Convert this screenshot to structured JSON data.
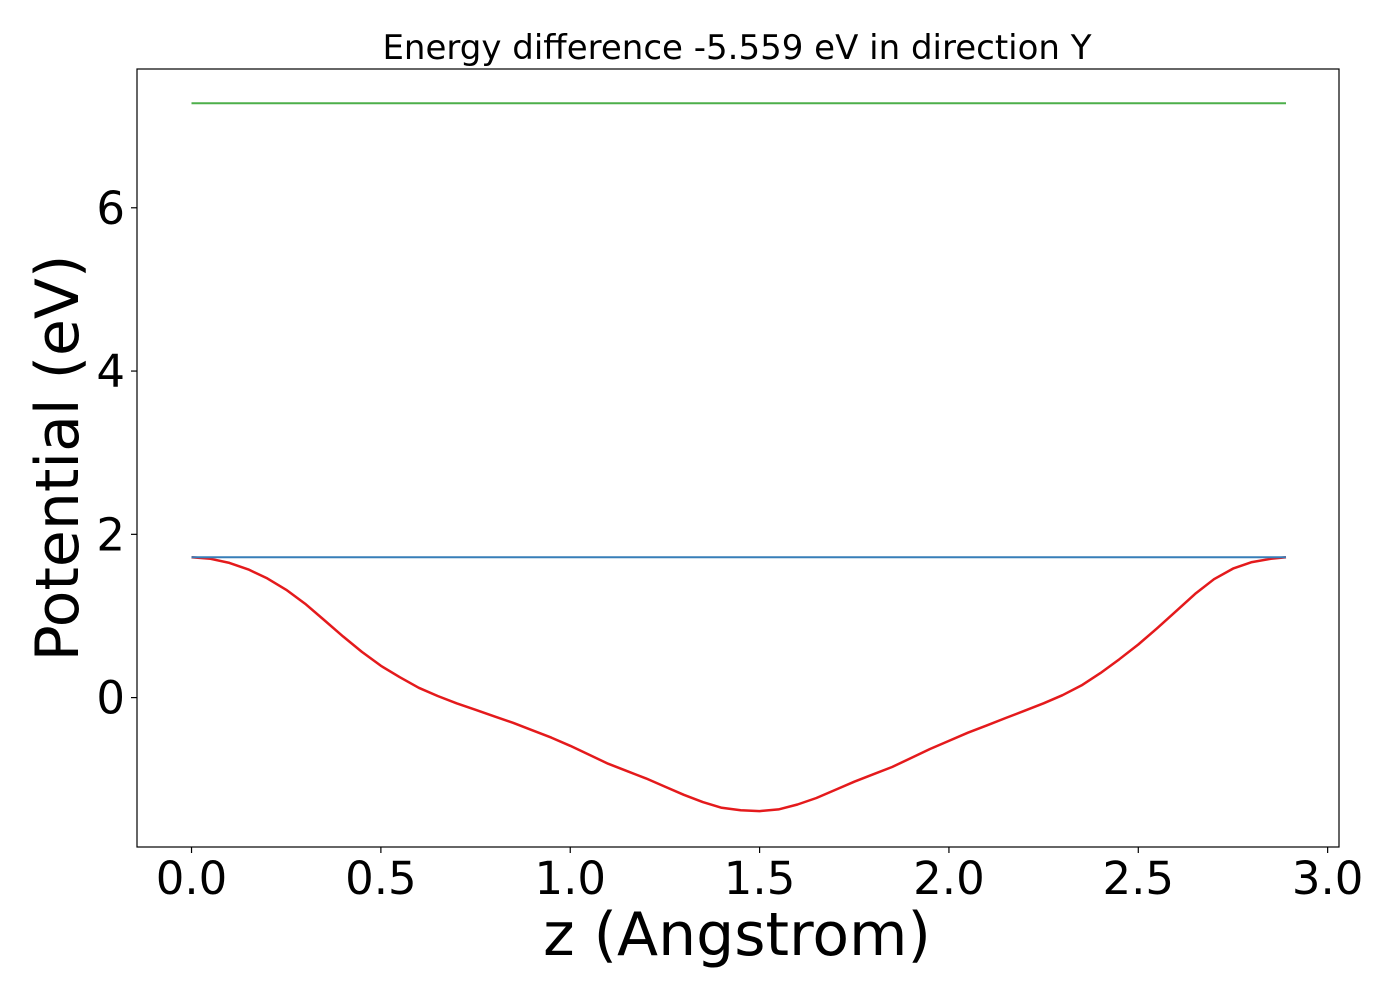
{
  "chart_data": {
    "type": "line",
    "title": "Energy difference -5.559 eV in direction Y",
    "xlabel": "z (Angstrom)",
    "ylabel": "Potential (eV)",
    "xlim": [
      -0.144,
      3.03
    ],
    "ylim": [
      -1.83,
      7.7
    ],
    "xticks": [
      0.0,
      0.5,
      1.0,
      1.5,
      2.0,
      2.5,
      3.0
    ],
    "xtick_labels": [
      "0.0",
      "0.5",
      "1.0",
      "1.5",
      "2.0",
      "2.5",
      "3.0"
    ],
    "yticks": [
      0,
      2,
      4,
      6
    ],
    "ytick_labels": [
      "0",
      "2",
      "4",
      "6"
    ],
    "grid": false,
    "series": [
      {
        "color": "#e41a1c",
        "x": [
          0.0,
          0.05,
          0.1,
          0.15,
          0.2,
          0.25,
          0.3,
          0.35,
          0.4,
          0.45,
          0.5,
          0.55,
          0.6,
          0.65,
          0.7,
          0.75,
          0.8,
          0.85,
          0.9,
          0.95,
          1.0,
          1.05,
          1.1,
          1.15,
          1.2,
          1.25,
          1.3,
          1.35,
          1.4,
          1.45,
          1.5,
          1.55,
          1.6,
          1.65,
          1.7,
          1.75,
          1.8,
          1.85,
          1.9,
          1.95,
          2.0,
          2.05,
          2.1,
          2.15,
          2.2,
          2.25,
          2.3,
          2.35,
          2.4,
          2.45,
          2.5,
          2.55,
          2.6,
          2.65,
          2.7,
          2.75,
          2.8,
          2.85,
          2.89
        ],
        "values": [
          1.72,
          1.7,
          1.65,
          1.57,
          1.46,
          1.32,
          1.15,
          0.95,
          0.75,
          0.56,
          0.39,
          0.25,
          0.12,
          0.02,
          -0.07,
          -0.15,
          -0.23,
          -0.31,
          -0.4,
          -0.49,
          -0.59,
          -0.7,
          -0.81,
          -0.9,
          -0.99,
          -1.09,
          -1.19,
          -1.28,
          -1.35,
          -1.38,
          -1.39,
          -1.37,
          -1.31,
          -1.23,
          -1.13,
          -1.03,
          -0.94,
          -0.85,
          -0.74,
          -0.63,
          -0.53,
          -0.43,
          -0.34,
          -0.25,
          -0.16,
          -0.07,
          0.03,
          0.15,
          0.3,
          0.47,
          0.65,
          0.85,
          1.06,
          1.27,
          1.45,
          1.58,
          1.66,
          1.7,
          1.72
        ]
      },
      {
        "color": "#377eb8",
        "x": [
          0.0,
          2.89
        ],
        "values": [
          1.72,
          1.72
        ]
      },
      {
        "color": "#4daf4a",
        "x": [
          0.0,
          2.89
        ],
        "values": [
          7.28,
          7.28
        ]
      }
    ]
  }
}
